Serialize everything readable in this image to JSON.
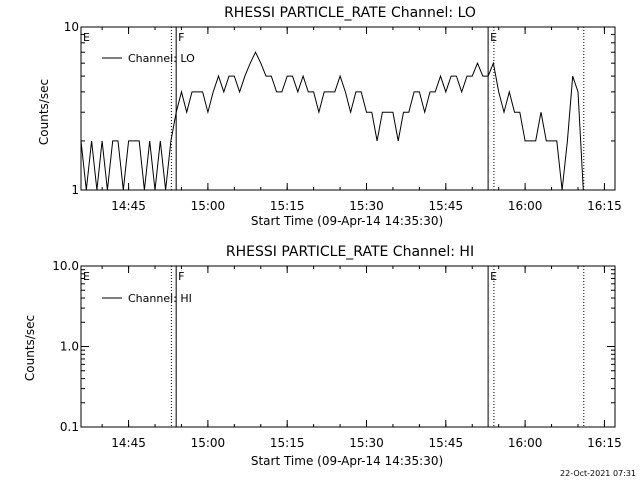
{
  "footer": {
    "timestamp": "22-Oct-2021 07:31"
  },
  "chart_data": [
    {
      "type": "line",
      "title": "RHESSI PARTICLE_RATE Channel: LO",
      "xlabel": "Start Time (09-Apr-14 14:35:30)",
      "ylabel": "Counts/sec",
      "y_scale": "log",
      "ylim": [
        1,
        10
      ],
      "xlim": [
        "14:36",
        "16:17"
      ],
      "y_ticks": [
        {
          "value": 1,
          "label": "1"
        },
        {
          "value": 10,
          "label": "10"
        }
      ],
      "x_ticks": [
        "14:45",
        "15:00",
        "15:15",
        "15:30",
        "15:45",
        "16:00",
        "16:15"
      ],
      "legend": {
        "placement": "top-left",
        "entries": [
          "Channel: LO"
        ]
      },
      "markers": [
        {
          "time": "14:36",
          "label": "E"
        },
        {
          "time": "14:54",
          "label": "F"
        },
        {
          "time": "15:53",
          "label": "E"
        }
      ],
      "vlines_solid": [
        "14:54",
        "15:53"
      ],
      "vlines_dotted": [
        "14:53",
        "15:54",
        "16:11"
      ],
      "series": [
        {
          "name": "Channel: LO",
          "x": [
            "14:36",
            "14:37",
            "14:38",
            "14:39",
            "14:40",
            "14:41",
            "14:42",
            "14:43",
            "14:44",
            "14:45",
            "14:46",
            "14:47",
            "14:48",
            "14:49",
            "14:50",
            "14:51",
            "14:52",
            "14:53",
            "14:54",
            "14:55",
            "14:56",
            "14:57",
            "14:58",
            "14:59",
            "15:00",
            "15:01",
            "15:02",
            "15:03",
            "15:04",
            "15:05",
            "15:06",
            "15:07",
            "15:08",
            "15:09",
            "15:10",
            "15:11",
            "15:12",
            "15:13",
            "15:14",
            "15:15",
            "15:16",
            "15:17",
            "15:18",
            "15:19",
            "15:20",
            "15:21",
            "15:22",
            "15:23",
            "15:24",
            "15:25",
            "15:26",
            "15:27",
            "15:28",
            "15:29",
            "15:30",
            "15:31",
            "15:32",
            "15:33",
            "15:34",
            "15:35",
            "15:36",
            "15:37",
            "15:38",
            "15:39",
            "15:40",
            "15:41",
            "15:42",
            "15:43",
            "15:44",
            "15:45",
            "15:46",
            "15:47",
            "15:48",
            "15:49",
            "15:50",
            "15:51",
            "15:52",
            "15:53",
            "15:54",
            "15:55",
            "15:56",
            "15:57",
            "15:58",
            "15:59",
            "16:00",
            "16:01",
            "16:02",
            "16:03",
            "16:04",
            "16:05",
            "16:06",
            "16:07",
            "16:08",
            "16:09",
            "16:10",
            "16:11"
          ],
          "y": [
            2,
            1,
            2,
            1,
            2,
            1,
            2,
            2,
            1,
            2,
            2,
            2,
            1,
            2,
            1,
            2,
            1,
            2,
            3,
            4,
            3,
            4,
            4,
            4,
            3,
            4,
            5,
            4,
            5,
            5,
            4,
            5,
            6,
            7,
            6,
            5,
            5,
            4,
            4,
            5,
            5,
            4,
            5,
            4,
            4,
            3,
            4,
            4,
            4,
            5,
            4,
            3,
            4,
            4,
            3,
            3,
            2,
            3,
            3,
            3,
            2,
            3,
            3,
            4,
            4,
            3,
            4,
            4,
            5,
            4,
            5,
            5,
            4,
            5,
            5,
            6,
            5,
            5,
            6,
            4,
            3,
            4,
            3,
            3,
            2,
            2,
            2,
            3,
            2,
            2,
            2,
            1,
            2,
            5,
            4,
            1
          ]
        }
      ]
    },
    {
      "type": "line",
      "title": "RHESSI PARTICLE_RATE Channel: HI",
      "xlabel": "Start Time (09-Apr-14 14:35:30)",
      "ylabel": "Counts/sec",
      "y_scale": "log",
      "ylim": [
        0.1,
        10
      ],
      "xlim": [
        "14:36",
        "16:17"
      ],
      "y_ticks": [
        {
          "value": 0.1,
          "label": "0.1"
        },
        {
          "value": 1,
          "label": "1.0"
        },
        {
          "value": 10,
          "label": "10.0"
        }
      ],
      "x_ticks": [
        "14:45",
        "15:00",
        "15:15",
        "15:30",
        "15:45",
        "16:00",
        "16:15"
      ],
      "legend": {
        "placement": "top-left",
        "entries": [
          "Channel: HI"
        ]
      },
      "markers": [
        {
          "time": "14:36",
          "label": "E"
        },
        {
          "time": "14:54",
          "label": "F"
        },
        {
          "time": "15:53",
          "label": "E"
        }
      ],
      "vlines_solid": [
        "14:54",
        "15:53"
      ],
      "vlines_dotted": [
        "14:53",
        "15:54",
        "16:11"
      ],
      "series": [
        {
          "name": "Channel: HI",
          "x": [],
          "y": []
        }
      ]
    }
  ]
}
